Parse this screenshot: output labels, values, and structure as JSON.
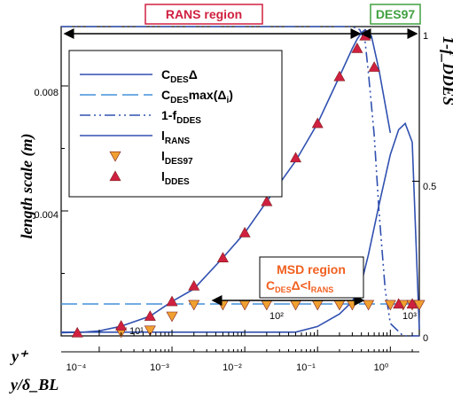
{
  "chart_data": {
    "type": "line",
    "x_scale": "log",
    "axes": {
      "x_top_label": "y⁺",
      "x_bottom_label": "y/δ_BL",
      "y_left_label": "length scale (m)",
      "y_right_label": "1-f_DDES",
      "y_left_ticks": [
        "0.004",
        "0.008"
      ],
      "y_right_ticks": [
        "0",
        "0.5",
        "1"
      ],
      "x_top_ticks": [
        "10¹",
        "10²",
        "10³"
      ],
      "x_bottom_ticks": [
        "10⁻⁴",
        "10⁻³",
        "10⁻²",
        "10⁻¹",
        "10⁰"
      ],
      "ylim_left": [
        0,
        0.0099
      ],
      "ylim_right": [
        0,
        1
      ],
      "xlim_bottom_y_over_delta": [
        3e-05,
        2.5
      ]
    },
    "legend": [
      {
        "key": "cdes-delta",
        "text": "C",
        "sub": "DES",
        "text2": "Δ",
        "sub2": ""
      },
      {
        "key": "cdes-max",
        "text": "C",
        "sub": "DES",
        "text2": "max(Δ",
        "sub2": "i",
        "text3": ")"
      },
      {
        "key": "one-minus-f",
        "text": "1-f",
        "sub": "DDES",
        "text2": "",
        "sub2": ""
      },
      {
        "key": "l-rans",
        "text": "l",
        "sub": "RANS",
        "text2": "",
        "sub2": ""
      },
      {
        "key": "l-des97",
        "text": "l",
        "sub": "DES97",
        "text2": "",
        "sub2": ""
      },
      {
        "key": "l-ddes",
        "text": "l",
        "sub": "DDES",
        "text2": "",
        "sub2": ""
      }
    ],
    "regions": {
      "rans": "RANS region",
      "des97": "DES97",
      "msd_line1": "MSD region",
      "msd_line2_main": "C",
      "msd_line2_sub1": "DES",
      "msd_line2_mid": "Δ<l",
      "msd_line2_sub2": "RANS"
    },
    "series": [
      {
        "name": "C_DESΔ",
        "axis": "left",
        "color": "#3050b0",
        "x": [
          3e-05,
          0.05,
          0.1,
          0.2,
          0.3,
          0.4,
          0.5,
          0.7,
          1.0,
          1.3,
          1.6,
          2.0,
          2.5
        ],
        "y": [
          0.00012,
          0.00012,
          0.0003,
          0.0007,
          0.0011,
          0.0017,
          0.0026,
          0.0042,
          0.0058,
          0.0066,
          0.0068,
          0.0062,
          0.0002
        ]
      },
      {
        "name": "C_DESmax(Δi)",
        "axis": "left",
        "color": "#4090d8",
        "x": [
          3e-05,
          2.5
        ],
        "y": [
          0.00102,
          0.00102
        ]
      },
      {
        "name": "1-f_DDES",
        "axis": "right",
        "color": "#3050b0",
        "x": [
          3e-05,
          0.3,
          0.38,
          0.45,
          0.5,
          0.6,
          0.7,
          0.85,
          1.0,
          1.5,
          2.5
        ],
        "y": [
          1.0,
          1.0,
          0.99,
          0.95,
          0.85,
          0.65,
          0.4,
          0.15,
          0.04,
          0.0,
          0.0
        ]
      },
      {
        "name": "l_RANS",
        "axis": "left",
        "color": "#3050b0",
        "x": [
          3e-05,
          6e-05,
          0.0001,
          0.0002,
          0.0005,
          0.001,
          0.002,
          0.005,
          0.01,
          0.02,
          0.05,
          0.1,
          0.2,
          0.3,
          0.35,
          0.4,
          0.45,
          0.55,
          0.7,
          1.0
        ],
        "y": [
          0.0001,
          0.00012,
          0.00016,
          0.00031,
          0.00063,
          0.0011,
          0.0015,
          0.0025,
          0.0033,
          0.0043,
          0.0056,
          0.0068,
          0.0083,
          0.0092,
          0.0095,
          0.0097,
          0.0098,
          0.0096,
          0.0085,
          0.0065
        ]
      },
      {
        "name": "l_DES97",
        "axis": "left",
        "color": "#f0a030",
        "marker": "triangle-down",
        "x": [
          0.0002,
          0.0005,
          0.001,
          0.002,
          0.005,
          0.01,
          0.02,
          0.05,
          0.1,
          0.2,
          0.3,
          0.5,
          1.0,
          1.5,
          2.0,
          2.5
        ],
        "y": [
          0.00012,
          0.00018,
          0.00063,
          0.001,
          0.001,
          0.001,
          0.001,
          0.001,
          0.001,
          0.001,
          0.001,
          0.001,
          0.001,
          0.001,
          0.001,
          0.001
        ]
      },
      {
        "name": "l_DDES",
        "axis": "left",
        "color": "#d02040",
        "marker": "triangle-up",
        "x": [
          5e-05,
          0.0002,
          0.0005,
          0.001,
          0.002,
          0.005,
          0.01,
          0.02,
          0.05,
          0.1,
          0.2,
          0.35,
          0.45,
          0.6,
          1.3,
          2.0
        ],
        "y": [
          0.0001,
          0.00032,
          0.00063,
          0.0011,
          0.0016,
          0.0025,
          0.0033,
          0.0043,
          0.0057,
          0.0068,
          0.0083,
          0.0092,
          0.0096,
          0.0086,
          0.00102,
          0.00102
        ]
      }
    ]
  }
}
